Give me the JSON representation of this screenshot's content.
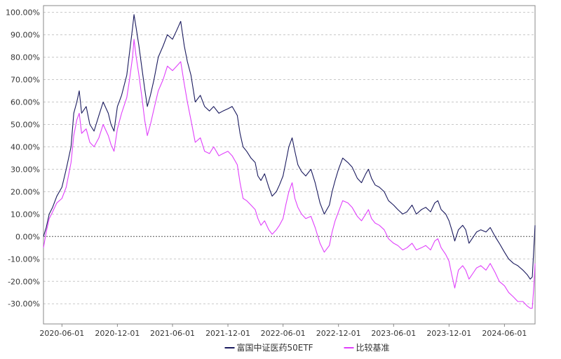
{
  "chart_data": {
    "type": "line",
    "title": "",
    "xlabel": "",
    "ylabel": "",
    "x_ticks": [
      "2020-06-01",
      "2020-12-01",
      "2021-06-01",
      "2021-12-01",
      "2022-06-01",
      "2022-12-01",
      "2023-06-01",
      "2023-12-01",
      "2024-06-01"
    ],
    "y_ticks": [
      "100.00%",
      "90.00%",
      "80.00%",
      "70.00%",
      "60.00%",
      "50.00%",
      "40.00%",
      "30.00%",
      "20.00%",
      "10.00%",
      "0.00%",
      "-10.00%",
      "-20.00%",
      "-30.00%"
    ],
    "ylim": [
      -39,
      103
    ],
    "xlim": [
      "2020-04-01",
      "2024-09-10"
    ],
    "grid": true,
    "legend_position": "bottom-center",
    "colors": {
      "fund": "#1a1a5e",
      "benchmark": "#e040fb",
      "grid": "#c8c8c8",
      "zero_line": "#555555",
      "axis": "#888888"
    },
    "series": [
      {
        "name": "富国中证医药50ETF",
        "color": "#1a1a5e",
        "points": [
          [
            "2020-04-01",
            0
          ],
          [
            "2020-04-10",
            4
          ],
          [
            "2020-04-20",
            10
          ],
          [
            "2020-05-01",
            13
          ],
          [
            "2020-05-15",
            18
          ],
          [
            "2020-06-01",
            22
          ],
          [
            "2020-06-15",
            30
          ],
          [
            "2020-07-01",
            40
          ],
          [
            "2020-07-10",
            55
          ],
          [
            "2020-07-20",
            60
          ],
          [
            "2020-07-28",
            65
          ],
          [
            "2020-08-05",
            55
          ],
          [
            "2020-08-20",
            58
          ],
          [
            "2020-09-01",
            50
          ],
          [
            "2020-09-15",
            47
          ],
          [
            "2020-10-01",
            54
          ],
          [
            "2020-10-15",
            60
          ],
          [
            "2020-11-01",
            55
          ],
          [
            "2020-11-10",
            50
          ],
          [
            "2020-11-20",
            47
          ],
          [
            "2020-12-01",
            58
          ],
          [
            "2020-12-15",
            63
          ],
          [
            "2021-01-01",
            72
          ],
          [
            "2021-01-10",
            82
          ],
          [
            "2021-01-20",
            93
          ],
          [
            "2021-01-25",
            99
          ],
          [
            "2021-02-01",
            93
          ],
          [
            "2021-02-10",
            85
          ],
          [
            "2021-02-20",
            75
          ],
          [
            "2021-03-01",
            66
          ],
          [
            "2021-03-10",
            58
          ],
          [
            "2021-03-20",
            63
          ],
          [
            "2021-04-01",
            70
          ],
          [
            "2021-04-15",
            80
          ],
          [
            "2021-05-01",
            85
          ],
          [
            "2021-05-15",
            90
          ],
          [
            "2021-06-01",
            88
          ],
          [
            "2021-06-15",
            92
          ],
          [
            "2021-06-28",
            96
          ],
          [
            "2021-07-10",
            85
          ],
          [
            "2021-07-20",
            78
          ],
          [
            "2021-08-01",
            72
          ],
          [
            "2021-08-15",
            60
          ],
          [
            "2021-09-01",
            63
          ],
          [
            "2021-09-15",
            58
          ],
          [
            "2021-10-01",
            56
          ],
          [
            "2021-10-15",
            58
          ],
          [
            "2021-11-01",
            55
          ],
          [
            "2021-11-15",
            56
          ],
          [
            "2021-12-01",
            57
          ],
          [
            "2021-12-15",
            58
          ],
          [
            "2022-01-01",
            54
          ],
          [
            "2022-01-10",
            46
          ],
          [
            "2022-01-20",
            40
          ],
          [
            "2022-02-01",
            38
          ],
          [
            "2022-02-15",
            35
          ],
          [
            "2022-03-01",
            33
          ],
          [
            "2022-03-10",
            27
          ],
          [
            "2022-03-20",
            25
          ],
          [
            "2022-04-01",
            28
          ],
          [
            "2022-04-15",
            22
          ],
          [
            "2022-04-26",
            18
          ],
          [
            "2022-05-10",
            20
          ],
          [
            "2022-05-20",
            23
          ],
          [
            "2022-06-01",
            27
          ],
          [
            "2022-06-10",
            33
          ],
          [
            "2022-06-20",
            40
          ],
          [
            "2022-07-01",
            44
          ],
          [
            "2022-07-10",
            38
          ],
          [
            "2022-07-20",
            32
          ],
          [
            "2022-08-01",
            29
          ],
          [
            "2022-08-15",
            27
          ],
          [
            "2022-09-01",
            30
          ],
          [
            "2022-09-15",
            24
          ],
          [
            "2022-10-01",
            15
          ],
          [
            "2022-10-15",
            10
          ],
          [
            "2022-11-01",
            14
          ],
          [
            "2022-11-10",
            20
          ],
          [
            "2022-11-20",
            25
          ],
          [
            "2022-12-01",
            30
          ],
          [
            "2022-12-15",
            35
          ],
          [
            "2023-01-01",
            33
          ],
          [
            "2023-01-15",
            31
          ],
          [
            "2023-02-01",
            26
          ],
          [
            "2023-02-15",
            24
          ],
          [
            "2023-03-01",
            28
          ],
          [
            "2023-03-10",
            30
          ],
          [
            "2023-03-20",
            26
          ],
          [
            "2023-04-01",
            23
          ],
          [
            "2023-04-15",
            22
          ],
          [
            "2023-05-01",
            20
          ],
          [
            "2023-05-15",
            16
          ],
          [
            "2023-06-01",
            14
          ],
          [
            "2023-06-15",
            12
          ],
          [
            "2023-07-01",
            10
          ],
          [
            "2023-07-15",
            11
          ],
          [
            "2023-08-01",
            14
          ],
          [
            "2023-08-15",
            10
          ],
          [
            "2023-09-01",
            12
          ],
          [
            "2023-09-15",
            13
          ],
          [
            "2023-10-01",
            11
          ],
          [
            "2023-10-15",
            15
          ],
          [
            "2023-10-25",
            16
          ],
          [
            "2023-11-05",
            12
          ],
          [
            "2023-11-20",
            10
          ],
          [
            "2023-12-01",
            7
          ],
          [
            "2023-12-10",
            3
          ],
          [
            "2023-12-20",
            -2
          ],
          [
            "2024-01-01",
            3
          ],
          [
            "2024-01-15",
            5
          ],
          [
            "2024-01-25",
            3
          ],
          [
            "2024-02-05",
            -3
          ],
          [
            "2024-02-20",
            0
          ],
          [
            "2024-03-01",
            2
          ],
          [
            "2024-03-15",
            3
          ],
          [
            "2024-04-01",
            2
          ],
          [
            "2024-04-15",
            4
          ],
          [
            "2024-05-01",
            0
          ],
          [
            "2024-05-15",
            -3
          ],
          [
            "2024-06-01",
            -7
          ],
          [
            "2024-06-15",
            -10
          ],
          [
            "2024-07-01",
            -12
          ],
          [
            "2024-07-15",
            -13
          ],
          [
            "2024-08-01",
            -15
          ],
          [
            "2024-08-15",
            -17
          ],
          [
            "2024-08-25",
            -19
          ],
          [
            "2024-09-01",
            -18
          ],
          [
            "2024-09-06",
            -5
          ],
          [
            "2024-09-10",
            5
          ]
        ]
      },
      {
        "name": "比较基准",
        "color": "#e040fb",
        "points": [
          [
            "2020-04-01",
            -5
          ],
          [
            "2020-04-10",
            2
          ],
          [
            "2020-04-20",
            8
          ],
          [
            "2020-05-01",
            11
          ],
          [
            "2020-05-15",
            15
          ],
          [
            "2020-06-01",
            17
          ],
          [
            "2020-06-15",
            22
          ],
          [
            "2020-07-01",
            33
          ],
          [
            "2020-07-10",
            45
          ],
          [
            "2020-07-20",
            52
          ],
          [
            "2020-07-28",
            55
          ],
          [
            "2020-08-05",
            46
          ],
          [
            "2020-08-20",
            48
          ],
          [
            "2020-09-01",
            42
          ],
          [
            "2020-09-15",
            40
          ],
          [
            "2020-10-01",
            44
          ],
          [
            "2020-10-15",
            50
          ],
          [
            "2020-11-01",
            45
          ],
          [
            "2020-11-10",
            41
          ],
          [
            "2020-11-20",
            38
          ],
          [
            "2020-12-01",
            48
          ],
          [
            "2020-12-15",
            55
          ],
          [
            "2021-01-01",
            62
          ],
          [
            "2021-01-10",
            70
          ],
          [
            "2021-01-20",
            80
          ],
          [
            "2021-01-25",
            88
          ],
          [
            "2021-02-01",
            80
          ],
          [
            "2021-02-10",
            72
          ],
          [
            "2021-02-20",
            62
          ],
          [
            "2021-03-01",
            52
          ],
          [
            "2021-03-10",
            45
          ],
          [
            "2021-03-20",
            50
          ],
          [
            "2021-04-01",
            57
          ],
          [
            "2021-04-15",
            65
          ],
          [
            "2021-05-01",
            70
          ],
          [
            "2021-05-15",
            76
          ],
          [
            "2021-06-01",
            74
          ],
          [
            "2021-06-15",
            76
          ],
          [
            "2021-06-28",
            78
          ],
          [
            "2021-07-10",
            68
          ],
          [
            "2021-07-20",
            60
          ],
          [
            "2021-08-01",
            52
          ],
          [
            "2021-08-15",
            42
          ],
          [
            "2021-09-01",
            44
          ],
          [
            "2021-09-15",
            38
          ],
          [
            "2021-10-01",
            37
          ],
          [
            "2021-10-15",
            40
          ],
          [
            "2021-11-01",
            36
          ],
          [
            "2021-11-15",
            37
          ],
          [
            "2021-12-01",
            38
          ],
          [
            "2021-12-15",
            36
          ],
          [
            "2022-01-01",
            32
          ],
          [
            "2022-01-10",
            24
          ],
          [
            "2022-01-20",
            17
          ],
          [
            "2022-02-01",
            16
          ],
          [
            "2022-02-15",
            14
          ],
          [
            "2022-03-01",
            12
          ],
          [
            "2022-03-10",
            8
          ],
          [
            "2022-03-20",
            5
          ],
          [
            "2022-04-01",
            7
          ],
          [
            "2022-04-15",
            3
          ],
          [
            "2022-04-26",
            1
          ],
          [
            "2022-05-10",
            3
          ],
          [
            "2022-05-20",
            5
          ],
          [
            "2022-06-01",
            8
          ],
          [
            "2022-06-10",
            14
          ],
          [
            "2022-06-20",
            20
          ],
          [
            "2022-07-01",
            24
          ],
          [
            "2022-07-10",
            17
          ],
          [
            "2022-07-20",
            13
          ],
          [
            "2022-08-01",
            10
          ],
          [
            "2022-08-15",
            8
          ],
          [
            "2022-09-01",
            9
          ],
          [
            "2022-09-15",
            4
          ],
          [
            "2022-10-01",
            -3
          ],
          [
            "2022-10-15",
            -7
          ],
          [
            "2022-11-01",
            -4
          ],
          [
            "2022-11-10",
            2
          ],
          [
            "2022-11-20",
            7
          ],
          [
            "2022-12-01",
            11
          ],
          [
            "2022-12-15",
            16
          ],
          [
            "2023-01-01",
            15
          ],
          [
            "2023-01-15",
            13
          ],
          [
            "2023-02-01",
            9
          ],
          [
            "2023-02-15",
            7
          ],
          [
            "2023-03-01",
            10
          ],
          [
            "2023-03-10",
            12
          ],
          [
            "2023-03-20",
            8
          ],
          [
            "2023-04-01",
            6
          ],
          [
            "2023-04-15",
            5
          ],
          [
            "2023-05-01",
            3
          ],
          [
            "2023-05-15",
            -1
          ],
          [
            "2023-06-01",
            -3
          ],
          [
            "2023-06-15",
            -4
          ],
          [
            "2023-07-01",
            -6
          ],
          [
            "2023-07-15",
            -5
          ],
          [
            "2023-08-01",
            -3
          ],
          [
            "2023-08-15",
            -6
          ],
          [
            "2023-09-01",
            -5
          ],
          [
            "2023-09-15",
            -4
          ],
          [
            "2023-10-01",
            -6
          ],
          [
            "2023-10-15",
            -2
          ],
          [
            "2023-10-25",
            -1
          ],
          [
            "2023-11-05",
            -5
          ],
          [
            "2023-11-20",
            -8
          ],
          [
            "2023-12-01",
            -11
          ],
          [
            "2023-12-10",
            -17
          ],
          [
            "2023-12-20",
            -23
          ],
          [
            "2024-01-01",
            -15
          ],
          [
            "2024-01-15",
            -13
          ],
          [
            "2024-01-25",
            -15
          ],
          [
            "2024-02-05",
            -19
          ],
          [
            "2024-02-20",
            -16
          ],
          [
            "2024-03-01",
            -14
          ],
          [
            "2024-03-15",
            -13
          ],
          [
            "2024-04-01",
            -15
          ],
          [
            "2024-04-15",
            -12
          ],
          [
            "2024-05-01",
            -16
          ],
          [
            "2024-05-15",
            -20
          ],
          [
            "2024-06-01",
            -22
          ],
          [
            "2024-06-15",
            -25
          ],
          [
            "2024-07-01",
            -27
          ],
          [
            "2024-07-15",
            -29
          ],
          [
            "2024-08-01",
            -29
          ],
          [
            "2024-08-15",
            -31
          ],
          [
            "2024-08-25",
            -32
          ],
          [
            "2024-09-01",
            -32
          ],
          [
            "2024-09-06",
            -22
          ],
          [
            "2024-09-10",
            -12
          ]
        ]
      }
    ]
  }
}
